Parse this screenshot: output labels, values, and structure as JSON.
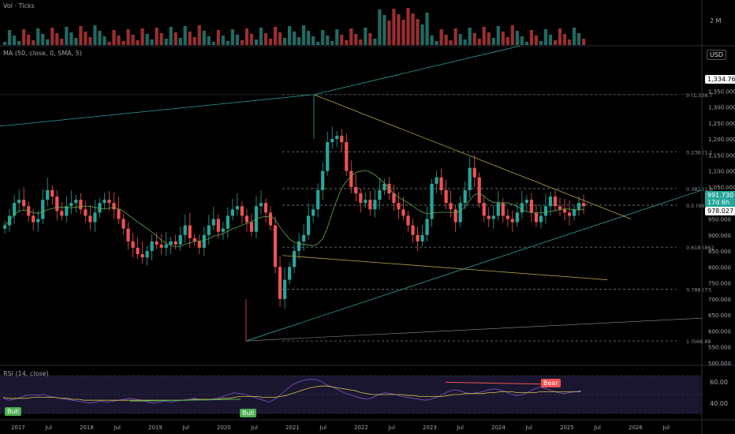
{
  "colors": {
    "up": "#26a69a",
    "down": "#ef5350",
    "vol_up": "#1f6b63",
    "vol_down": "#9b2e2e",
    "ma": "#6aa84f",
    "fib": "#8a8f99",
    "trend_teal": "#2aa198",
    "trend_olive": "#b5a642",
    "rsi": "#7e57c2",
    "rsi_ma": "#d4c14a"
  },
  "volume_pane": {
    "title": "Vol · Ticks",
    "axis_label": "2 M"
  },
  "price_pane": {
    "title": "MA (50, close, 0, SMA, 5)",
    "currency": "USD",
    "current_price": "991.730",
    "countdown": "17d 6h",
    "ma_value": "978.027",
    "high_marker": "1,334.761"
  },
  "rsi_pane": {
    "title": "RSI (14, close)",
    "labels": [
      "60.00",
      "40.00"
    ],
    "bull_label": "Bull",
    "bear_label": "Bear"
  },
  "fib_labels": [
    "0 (1,338.7",
    "0.236 (1,1",
    "0.382 (1,0",
    "0.5 (993.2",
    "0.618 (862",
    "0.786 (73:",
    "1 (568.88"
  ],
  "chart_data": {
    "type": "candlestick",
    "ylim": [
      500,
      1400
    ],
    "y_ticks": [
      "1,350.000",
      "1,300.000",
      "1,250.000",
      "1,200.000",
      "1,150.000",
      "1,100.000",
      "1,050.000",
      "1,000.000",
      "950.000",
      "900.000",
      "850.000",
      "800.000",
      "750.000",
      "700.000",
      "650.000",
      "600.000",
      "550.000",
      "500.000"
    ],
    "x_ticks": [
      "2017",
      "Jul",
      "2018",
      "Jul",
      "2019",
      "Jul",
      "2020",
      "Jul",
      "2021",
      "Jul",
      "2022",
      "Jul",
      "2023",
      "Jul",
      "2024",
      "Jul",
      "2025",
      "Jul",
      "2026",
      "Jul"
    ],
    "fib_levels": [
      1338.7,
      1160,
      1045,
      993.2,
      862,
      730,
      568.88
    ],
    "closes": [
      930,
      960,
      1000,
      1010,
      990,
      960,
      940,
      950,
      1010,
      1040,
      1020,
      975,
      960,
      990,
      1000,
      1010,
      980,
      960,
      940,
      970,
      1000,
      1010,
      1000,
      980,
      950,
      920,
      880,
      860,
      840,
      830,
      850,
      880,
      870,
      860,
      870,
      880,
      870,
      900,
      930,
      890,
      880,
      860,
      900,
      930,
      950,
      910,
      920,
      960,
      980,
      990,
      960,
      940,
      910,
      990,
      1000,
      970,
      930,
      800,
      700,
      760,
      800,
      850,
      880,
      900,
      960,
      980,
      1040,
      1100,
      1190,
      1200,
      1210,
      1190,
      1100,
      1050,
      1030,
      1000,
      1010,
      980,
      1010,
      1040,
      1060,
      1030,
      1000,
      980,
      960,
      930,
      900,
      880,
      900,
      950,
      1060,
      1080,
      1040,
      1000,
      980,
      940,
      1000,
      1040,
      1110,
      1080,
      1000,
      960,
      950,
      960,
      1000,
      960,
      950,
      940,
      970,
      1000,
      1010,
      970,
      940,
      960,
      990,
      1020,
      990,
      980,
      970,
      960,
      980,
      1000,
      990
    ],
    "rsi": [
      46,
      44,
      45,
      47,
      49,
      50,
      49,
      50,
      48,
      47,
      46,
      45,
      44,
      43,
      42,
      41,
      42,
      43,
      42,
      43,
      44,
      45,
      46,
      45,
      44,
      42,
      41,
      42,
      43,
      42,
      43,
      44,
      45,
      46,
      45,
      44,
      45,
      46,
      48,
      50,
      52,
      51,
      50,
      48,
      46,
      44,
      42,
      45,
      50,
      55,
      60,
      63,
      65,
      66,
      66,
      64,
      60,
      58,
      55,
      52,
      50,
      48,
      46,
      45,
      47,
      50,
      52,
      51,
      50,
      48,
      47,
      46,
      45,
      44,
      45,
      47,
      50,
      53,
      55,
      54,
      52,
      51,
      52,
      53,
      55,
      56,
      55,
      53,
      50,
      49,
      50,
      53,
      56,
      58,
      56,
      54,
      52,
      51,
      52,
      53,
      54
    ],
    "rsi_ma": [
      47,
      46,
      46,
      46,
      46,
      47,
      47,
      47,
      47,
      47,
      46,
      46,
      45,
      45,
      44,
      44,
      44,
      44,
      44,
      44,
      44,
      44,
      44,
      44,
      44,
      44,
      44,
      44,
      44,
      44,
      44,
      44,
      44,
      45,
      45,
      45,
      45,
      45,
      46,
      46,
      47,
      48,
      48,
      48,
      48,
      47,
      47,
      47,
      48,
      49,
      51,
      53,
      55,
      57,
      58,
      59,
      59,
      58,
      57,
      56,
      55,
      54,
      52,
      51,
      50,
      50,
      50,
      50,
      50,
      50,
      49,
      49,
      48,
      48,
      48,
      48,
      48,
      49,
      50,
      50,
      51,
      51,
      51,
      51,
      52,
      52,
      53,
      53,
      53,
      52,
      52,
      52,
      52,
      53,
      53,
      53,
      53,
      53,
      53,
      53,
      53
    ]
  }
}
